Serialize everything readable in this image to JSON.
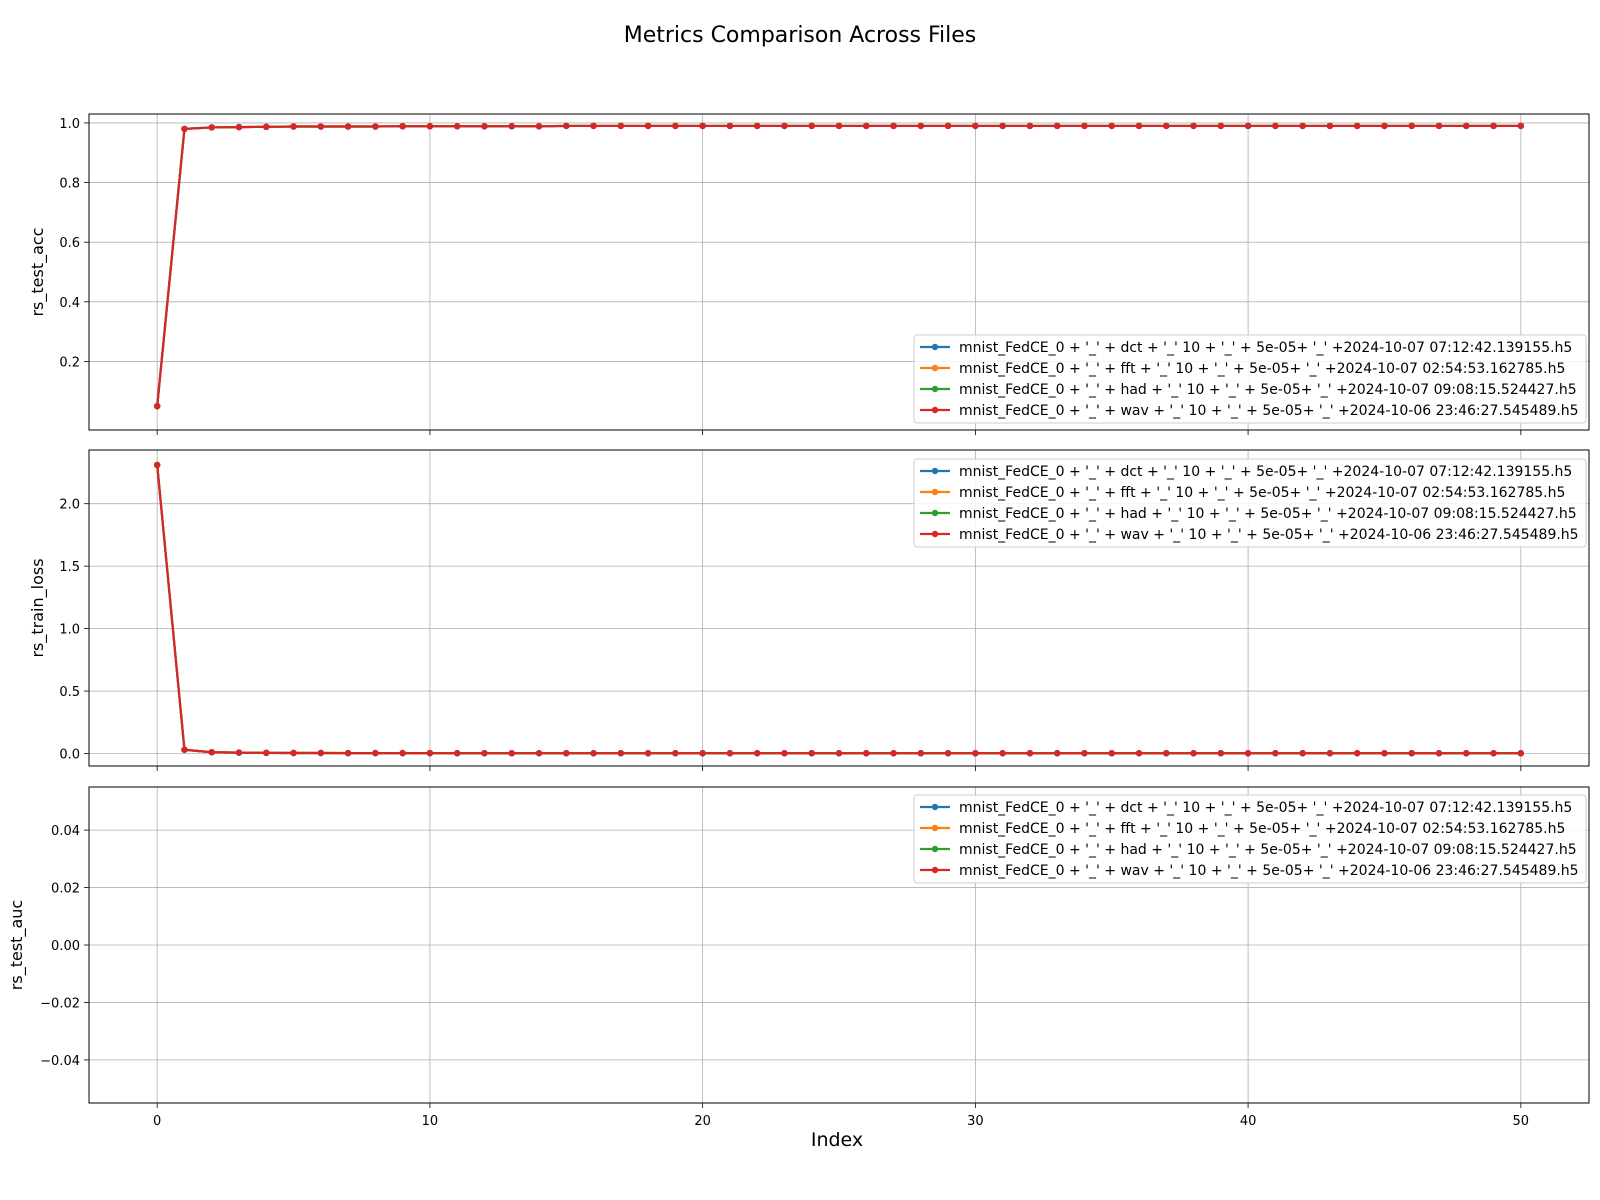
{
  "figure": {
    "title": "Metrics Comparison Across Files",
    "xlabel": "Index"
  },
  "chart_data": [
    {
      "type": "line",
      "ylabel": "rs_test_acc",
      "xlim": [
        -2.5,
        52.5
      ],
      "ylim": [
        -0.03,
        1.03
      ],
      "xticks": [
        0,
        10,
        20,
        30,
        40,
        50
      ],
      "xtick_labels": [
        "",
        "",
        "",
        "",
        "",
        ""
      ],
      "yticks": [
        0.2,
        0.4,
        0.6,
        0.8,
        1.0
      ],
      "ytick_labels": [
        "0.2",
        "0.4",
        "0.6",
        "0.8",
        "1.0"
      ],
      "grid": true,
      "legend_position": "lower-right",
      "x": [
        0,
        1,
        2,
        3,
        4,
        5,
        6,
        7,
        8,
        9,
        10,
        11,
        12,
        13,
        14,
        15,
        16,
        17,
        18,
        19,
        20,
        21,
        22,
        23,
        24,
        25,
        26,
        27,
        28,
        29,
        30,
        31,
        32,
        33,
        34,
        35,
        36,
        37,
        38,
        39,
        40,
        41,
        42,
        43,
        44,
        45,
        46,
        47,
        48,
        49,
        50
      ],
      "series": [
        {
          "name": "mnist_FedCE_0 + '_' + dct + '_' 10 + '_' + 5e-05+ '_' +2024-10-07 07:12:42.139155.h5",
          "color": "#1f77b4",
          "values": [
            0.05,
            0.98,
            0.985,
            0.986,
            0.987,
            0.988,
            0.988,
            0.988,
            0.988,
            0.989,
            0.989,
            0.989,
            0.989,
            0.989,
            0.989,
            0.99,
            0.99,
            0.99,
            0.99,
            0.99,
            0.99,
            0.99,
            0.99,
            0.99,
            0.99,
            0.99,
            0.99,
            0.99,
            0.99,
            0.99,
            0.99,
            0.99,
            0.99,
            0.99,
            0.99,
            0.99,
            0.99,
            0.99,
            0.99,
            0.99,
            0.99,
            0.99,
            0.99,
            0.99,
            0.99,
            0.99,
            0.99,
            0.99,
            0.99,
            0.99,
            0.99
          ]
        },
        {
          "name": "mnist_FedCE_0 + '_' + fft + '_' 10 + '_' + 5e-05+ '_' +2024-10-07 02:54:53.162785.h5",
          "color": "#ff7f0e",
          "values": [
            0.05,
            0.98,
            0.985,
            0.986,
            0.987,
            0.988,
            0.988,
            0.988,
            0.988,
            0.989,
            0.989,
            0.989,
            0.989,
            0.989,
            0.989,
            0.99,
            0.99,
            0.99,
            0.99,
            0.99,
            0.99,
            0.99,
            0.99,
            0.99,
            0.99,
            0.99,
            0.99,
            0.99,
            0.99,
            0.99,
            0.99,
            0.99,
            0.99,
            0.99,
            0.99,
            0.99,
            0.99,
            0.99,
            0.99,
            0.99,
            0.99,
            0.99,
            0.99,
            0.99,
            0.99,
            0.99,
            0.99,
            0.99,
            0.99,
            0.99,
            0.99
          ]
        },
        {
          "name": "mnist_FedCE_0 + '_' + had + '_' 10 + '_' + 5e-05+ '_' +2024-10-07 09:08:15.524427.h5",
          "color": "#2ca02c",
          "values": [
            0.05,
            0.98,
            0.985,
            0.986,
            0.987,
            0.988,
            0.988,
            0.988,
            0.988,
            0.989,
            0.989,
            0.989,
            0.989,
            0.989,
            0.989,
            0.99,
            0.99,
            0.99,
            0.99,
            0.99,
            0.99,
            0.99,
            0.99,
            0.99,
            0.99,
            0.99,
            0.99,
            0.99,
            0.99,
            0.99,
            0.99,
            0.99,
            0.99,
            0.99,
            0.99,
            0.99,
            0.99,
            0.99,
            0.99,
            0.99,
            0.99,
            0.99,
            0.99,
            0.99,
            0.99,
            0.99,
            0.99,
            0.99,
            0.99,
            0.99,
            0.99
          ]
        },
        {
          "name": "mnist_FedCE_0 + '_' + wav + '_' 10 + '_' + 5e-05+ '_' +2024-10-06 23:46:27.545489.h5",
          "color": "#d62728",
          "values": [
            0.05,
            0.98,
            0.985,
            0.986,
            0.987,
            0.988,
            0.988,
            0.988,
            0.988,
            0.989,
            0.989,
            0.989,
            0.989,
            0.989,
            0.989,
            0.99,
            0.99,
            0.99,
            0.99,
            0.99,
            0.99,
            0.99,
            0.99,
            0.99,
            0.99,
            0.99,
            0.99,
            0.99,
            0.99,
            0.99,
            0.99,
            0.99,
            0.99,
            0.99,
            0.99,
            0.99,
            0.99,
            0.99,
            0.99,
            0.99,
            0.99,
            0.99,
            0.99,
            0.99,
            0.99,
            0.99,
            0.99,
            0.99,
            0.99,
            0.99,
            0.99
          ]
        }
      ]
    },
    {
      "type": "line",
      "ylabel": "rs_train_loss",
      "xlim": [
        -2.5,
        52.5
      ],
      "ylim": [
        -0.1,
        2.43
      ],
      "xticks": [
        0,
        10,
        20,
        30,
        40,
        50
      ],
      "xtick_labels": [
        "",
        "",
        "",
        "",
        "",
        ""
      ],
      "yticks": [
        0.0,
        0.5,
        1.0,
        1.5,
        2.0
      ],
      "ytick_labels": [
        "0.0",
        "0.5",
        "1.0",
        "1.5",
        "2.0"
      ],
      "grid": true,
      "legend_position": "upper-right",
      "x": [
        0,
        1,
        2,
        3,
        4,
        5,
        6,
        7,
        8,
        9,
        10,
        11,
        12,
        13,
        14,
        15,
        16,
        17,
        18,
        19,
        20,
        21,
        22,
        23,
        24,
        25,
        26,
        27,
        28,
        29,
        30,
        31,
        32,
        33,
        34,
        35,
        36,
        37,
        38,
        39,
        40,
        41,
        42,
        43,
        44,
        45,
        46,
        47,
        48,
        49,
        50
      ],
      "series": [
        {
          "name": "mnist_FedCE_0 + '_' + dct + '_' 10 + '_' + 5e-05+ '_' +2024-10-07 07:12:42.139155.h5",
          "color": "#1f77b4",
          "values": [
            2.31,
            0.03,
            0.01,
            0.007,
            0.005,
            0.004,
            0.004,
            0.003,
            0.003,
            0.003,
            0.003,
            0.002,
            0.002,
            0.002,
            0.002,
            0.002,
            0.002,
            0.002,
            0.002,
            0.002,
            0.002,
            0.002,
            0.002,
            0.002,
            0.002,
            0.002,
            0.002,
            0.002,
            0.002,
            0.002,
            0.002,
            0.002,
            0.002,
            0.002,
            0.002,
            0.002,
            0.002,
            0.002,
            0.002,
            0.002,
            0.002,
            0.002,
            0.002,
            0.002,
            0.002,
            0.002,
            0.002,
            0.002,
            0.002,
            0.002,
            0.002
          ]
        },
        {
          "name": "mnist_FedCE_0 + '_' + fft + '_' 10 + '_' + 5e-05+ '_' +2024-10-07 02:54:53.162785.h5",
          "color": "#ff7f0e",
          "values": [
            2.31,
            0.03,
            0.01,
            0.007,
            0.005,
            0.004,
            0.004,
            0.003,
            0.003,
            0.003,
            0.003,
            0.002,
            0.002,
            0.002,
            0.002,
            0.002,
            0.002,
            0.002,
            0.002,
            0.002,
            0.002,
            0.002,
            0.002,
            0.002,
            0.002,
            0.002,
            0.002,
            0.002,
            0.002,
            0.002,
            0.002,
            0.002,
            0.002,
            0.002,
            0.002,
            0.002,
            0.002,
            0.002,
            0.002,
            0.002,
            0.002,
            0.002,
            0.002,
            0.002,
            0.002,
            0.002,
            0.002,
            0.002,
            0.002,
            0.002,
            0.002
          ]
        },
        {
          "name": "mnist_FedCE_0 + '_' + had + '_' 10 + '_' + 5e-05+ '_' +2024-10-07 09:08:15.524427.h5",
          "color": "#2ca02c",
          "values": [
            2.31,
            0.03,
            0.01,
            0.007,
            0.005,
            0.004,
            0.004,
            0.003,
            0.003,
            0.003,
            0.003,
            0.002,
            0.002,
            0.002,
            0.002,
            0.002,
            0.002,
            0.002,
            0.002,
            0.002,
            0.002,
            0.002,
            0.002,
            0.002,
            0.002,
            0.002,
            0.002,
            0.002,
            0.002,
            0.002,
            0.002,
            0.002,
            0.002,
            0.002,
            0.002,
            0.002,
            0.002,
            0.002,
            0.002,
            0.002,
            0.002,
            0.002,
            0.002,
            0.002,
            0.002,
            0.002,
            0.002,
            0.002,
            0.002,
            0.002,
            0.002
          ]
        },
        {
          "name": "mnist_FedCE_0 + '_' + wav + '_' 10 + '_' + 5e-05+ '_' +2024-10-06 23:46:27.545489.h5",
          "color": "#d62728",
          "values": [
            2.31,
            0.03,
            0.01,
            0.007,
            0.005,
            0.004,
            0.004,
            0.003,
            0.003,
            0.003,
            0.003,
            0.002,
            0.002,
            0.002,
            0.002,
            0.002,
            0.002,
            0.002,
            0.002,
            0.002,
            0.002,
            0.002,
            0.002,
            0.002,
            0.002,
            0.002,
            0.002,
            0.002,
            0.002,
            0.002,
            0.002,
            0.002,
            0.002,
            0.002,
            0.002,
            0.002,
            0.002,
            0.002,
            0.002,
            0.002,
            0.002,
            0.002,
            0.002,
            0.002,
            0.002,
            0.002,
            0.002,
            0.002,
            0.002,
            0.002,
            0.002
          ]
        }
      ]
    },
    {
      "type": "line",
      "ylabel": "rs_test_auc",
      "xlim": [
        -2.5,
        52.5
      ],
      "ylim": [
        -0.055,
        0.055
      ],
      "xticks": [
        0,
        10,
        20,
        30,
        40,
        50
      ],
      "xtick_labels": [
        "0",
        "10",
        "20",
        "30",
        "40",
        "50"
      ],
      "yticks": [
        -0.04,
        -0.02,
        0.0,
        0.02,
        0.04
      ],
      "ytick_labels": [
        "−0.04",
        "−0.02",
        "0.00",
        "0.02",
        "0.04"
      ],
      "grid": true,
      "legend_position": "upper-right",
      "x": [],
      "series": [
        {
          "name": "mnist_FedCE_0 + '_' + dct + '_' 10 + '_' + 5e-05+ '_' +2024-10-07 07:12:42.139155.h5",
          "color": "#1f77b4",
          "values": []
        },
        {
          "name": "mnist_FedCE_0 + '_' + fft + '_' 10 + '_' + 5e-05+ '_' +2024-10-07 02:54:53.162785.h5",
          "color": "#ff7f0e",
          "values": []
        },
        {
          "name": "mnist_FedCE_0 + '_' + had + '_' 10 + '_' + 5e-05+ '_' +2024-10-07 09:08:15.524427.h5",
          "color": "#2ca02c",
          "values": []
        },
        {
          "name": "mnist_FedCE_0 + '_' + wav + '_' 10 + '_' + 5e-05+ '_' +2024-10-06 23:46:27.545489.h5",
          "color": "#d62728",
          "values": []
        }
      ]
    }
  ]
}
